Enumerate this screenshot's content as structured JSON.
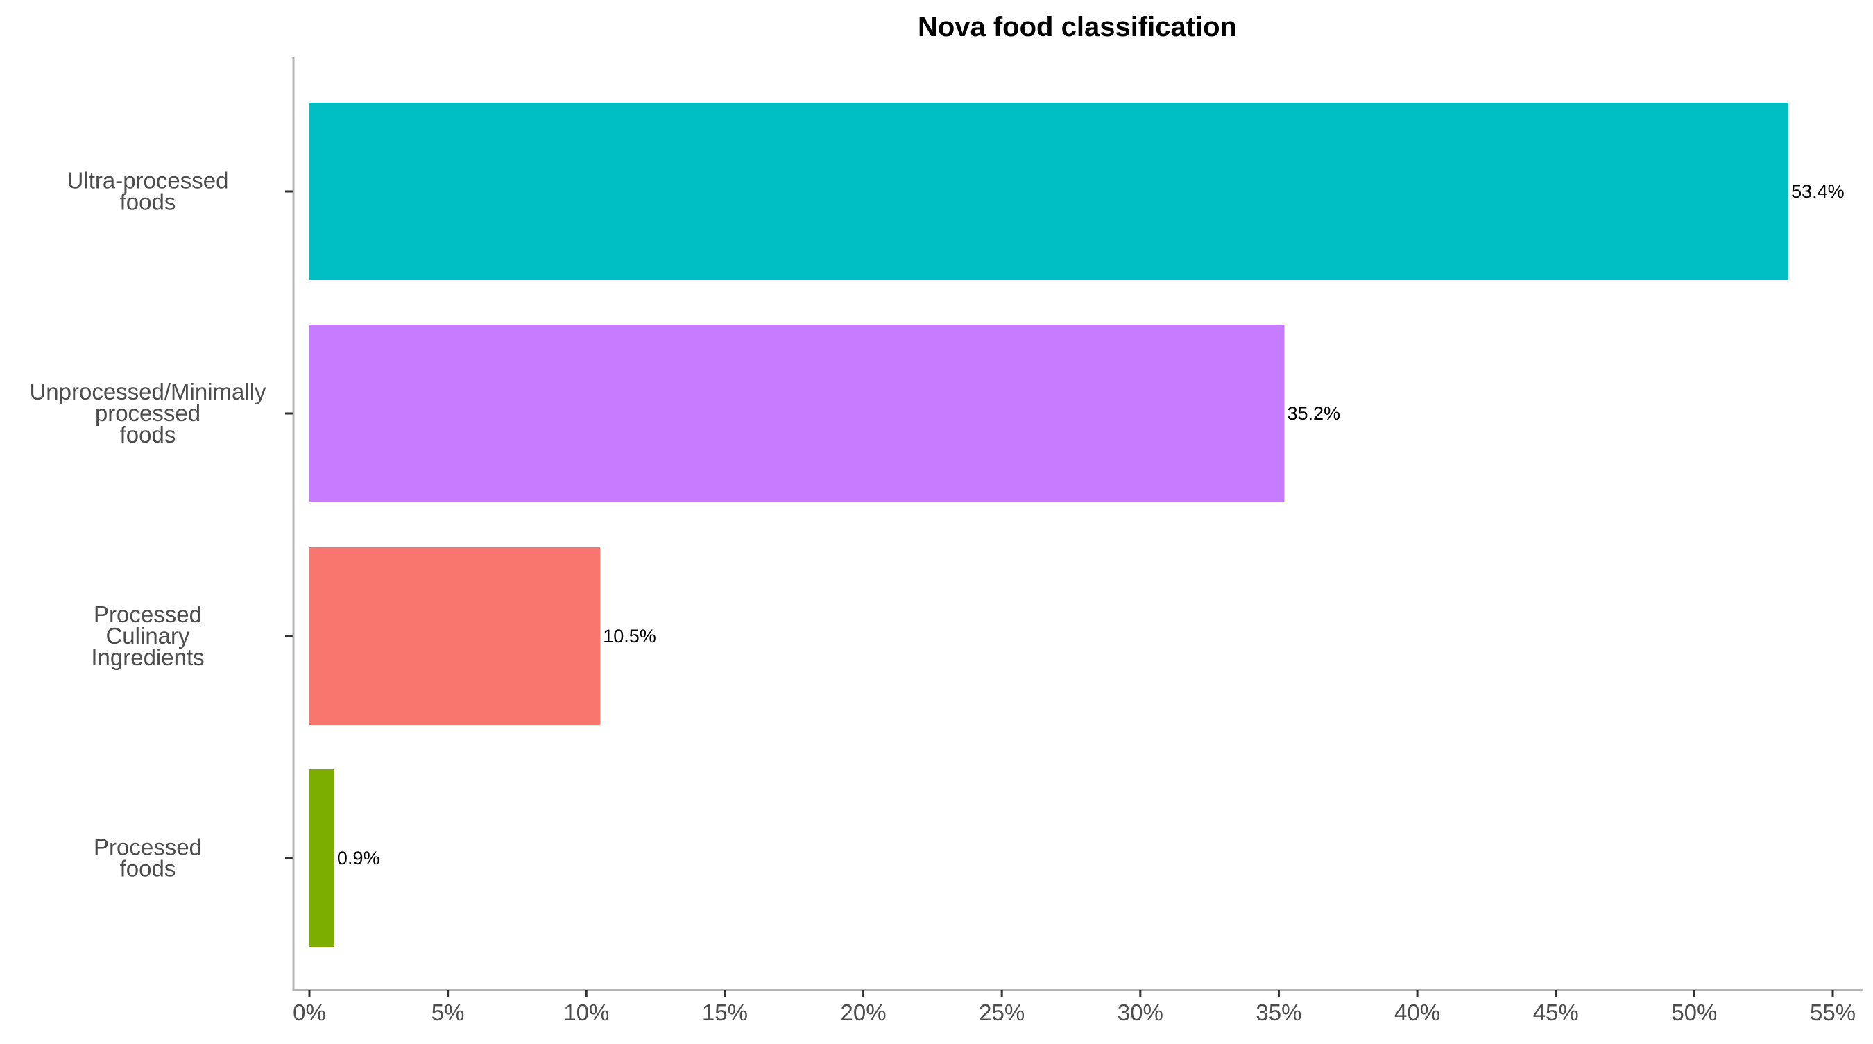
{
  "chart_data": {
    "type": "bar",
    "orientation": "horizontal",
    "title": "Nova food classification",
    "xlabel": "",
    "ylabel": "",
    "xlim": [
      0,
      55
    ],
    "x_ticks": [
      "0%",
      "5%",
      "10%",
      "15%",
      "20%",
      "25%",
      "30%",
      "35%",
      "40%",
      "45%",
      "50%",
      "55%"
    ],
    "x_tick_values": [
      0,
      5,
      10,
      15,
      20,
      25,
      30,
      35,
      40,
      45,
      50,
      55
    ],
    "grid": false,
    "legend": "none",
    "categories": [
      [
        "Ultra-processed",
        "foods"
      ],
      [
        "Unprocessed/Minimally",
        "processed",
        "foods"
      ],
      [
        "Processed",
        "Culinary",
        "Ingredients"
      ],
      [
        "Processed",
        "foods"
      ]
    ],
    "values": [
      53.4,
      35.2,
      10.5,
      0.9
    ],
    "data_labels": [
      "53.4%",
      "35.2%",
      "10.5%",
      "0.9%"
    ],
    "colors": [
      "#00BFC4",
      "#C77CFF",
      "#F8766D",
      "#7CAE00"
    ]
  }
}
